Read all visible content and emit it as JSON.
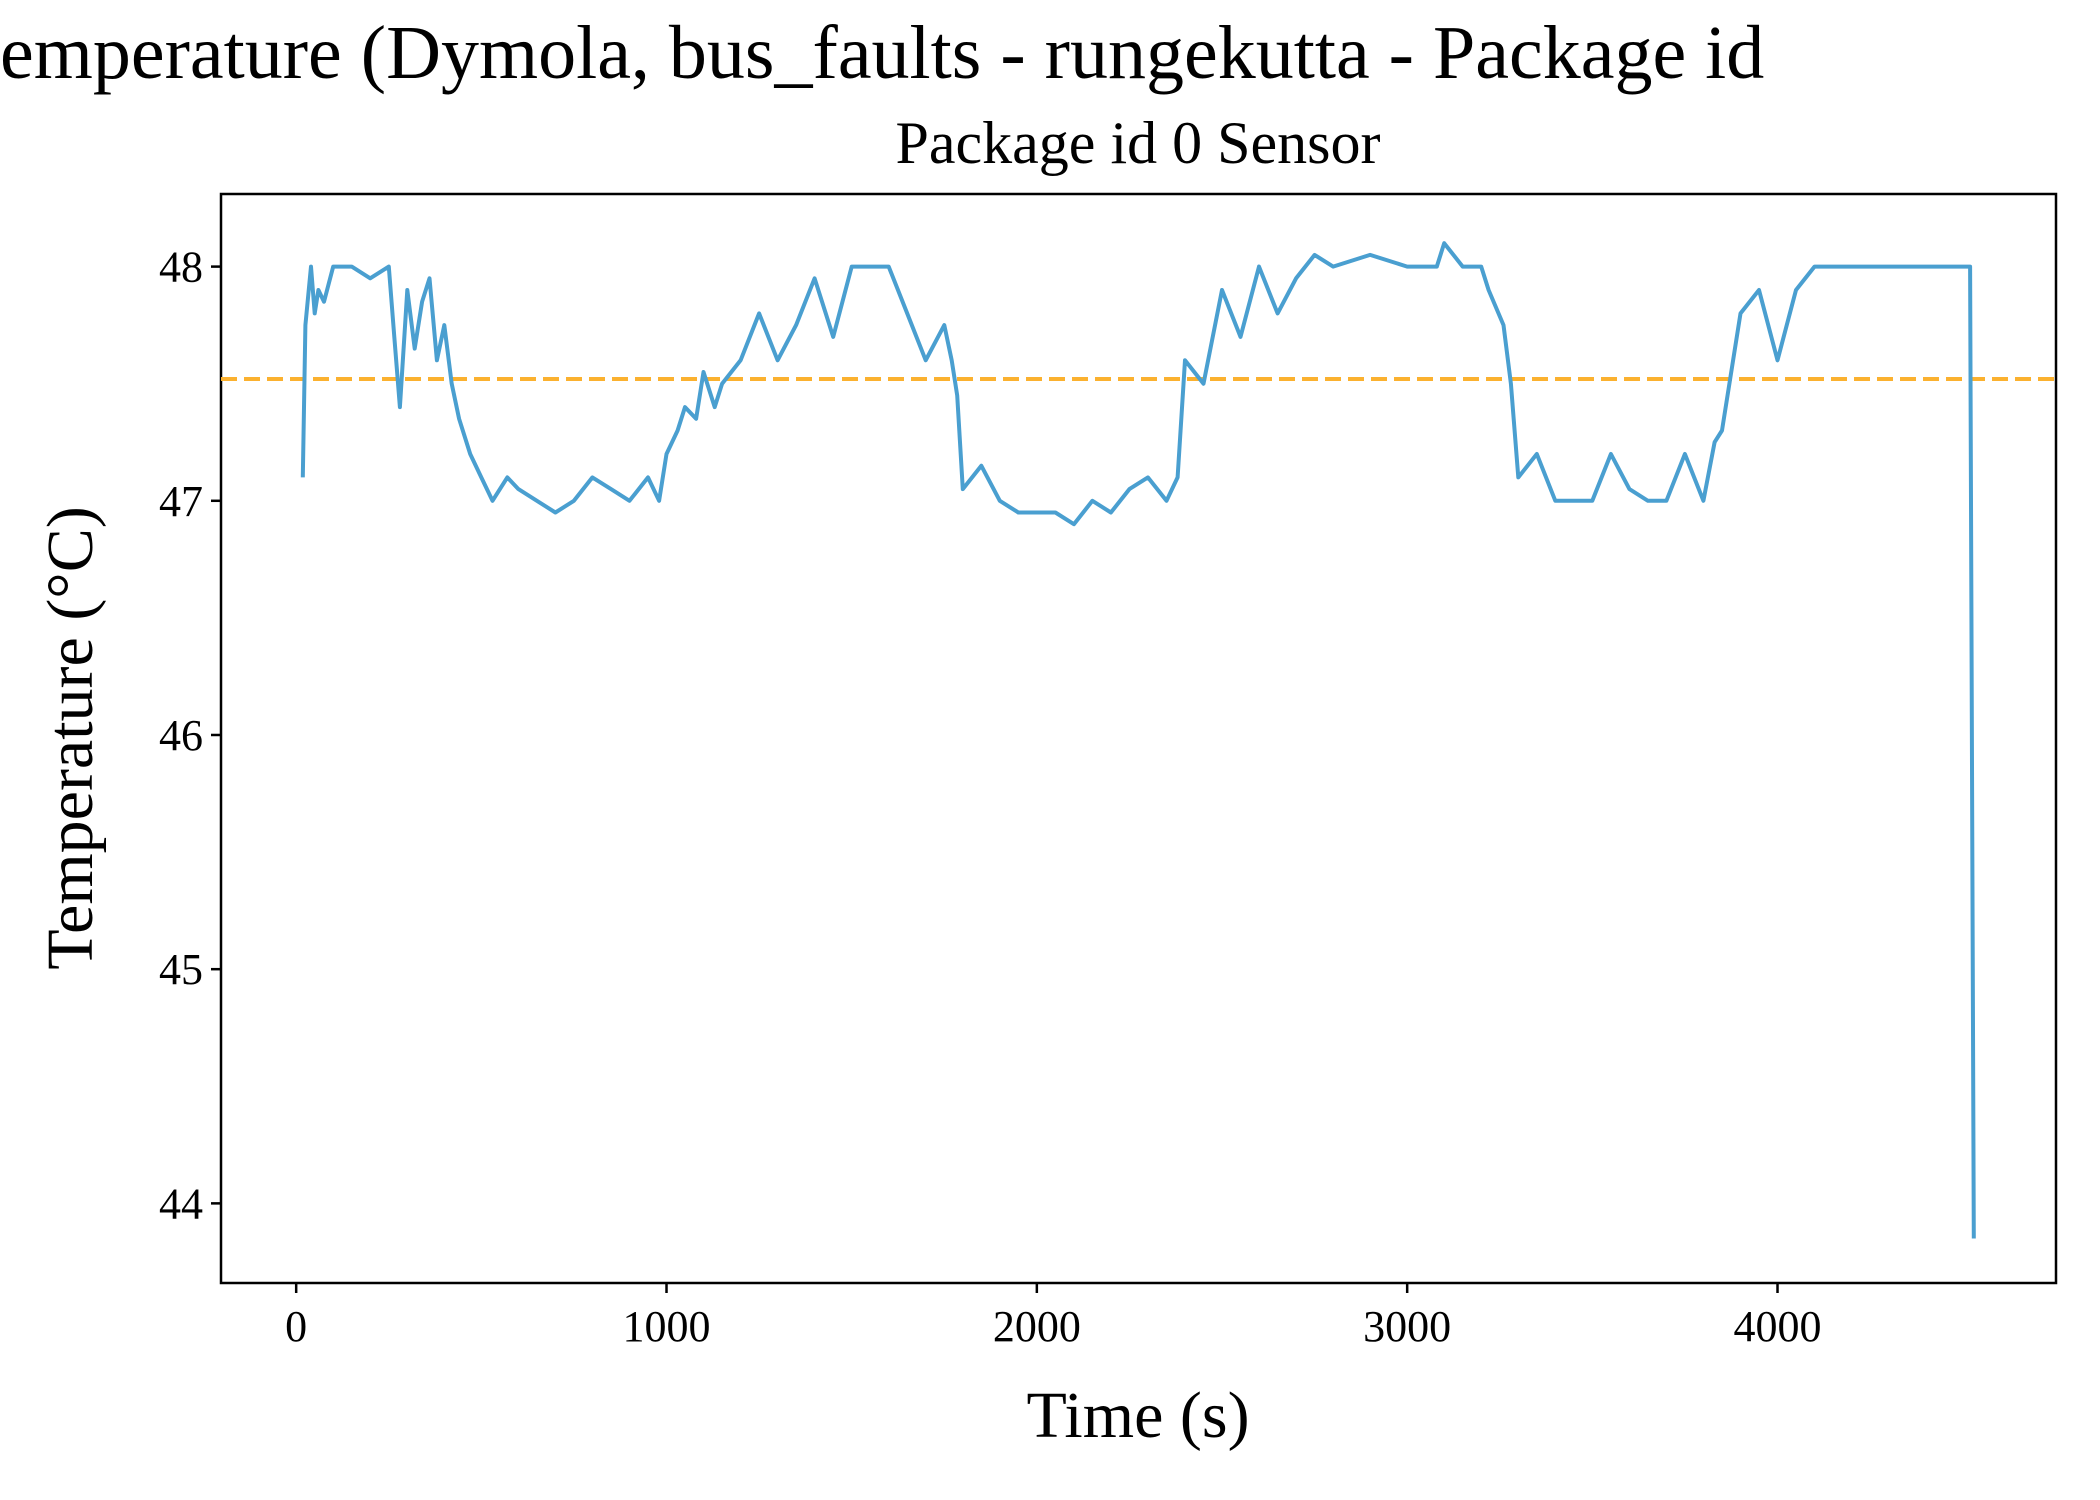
{
  "chart_data": {
    "type": "line",
    "title": "emperature (Dymola, bus_faults - rungekutta - Package id",
    "subtitle": "Package id 0 Sensor",
    "xlabel": "Time (s)",
    "ylabel": "Temperature (°C)",
    "x": [
      18,
      25,
      40,
      50,
      60,
      75,
      100,
      150,
      200,
      250,
      265,
      280,
      300,
      320,
      340,
      360,
      380,
      400,
      420,
      440,
      470,
      500,
      530,
      570,
      600,
      650,
      700,
      750,
      800,
      850,
      900,
      950,
      980,
      1000,
      1030,
      1050,
      1080,
      1100,
      1130,
      1150,
      1200,
      1250,
      1300,
      1350,
      1400,
      1450,
      1500,
      1550,
      1600,
      1650,
      1700,
      1750,
      1770,
      1785,
      1800,
      1850,
      1900,
      1950,
      2000,
      2050,
      2100,
      2150,
      2200,
      2250,
      2300,
      2350,
      2380,
      2400,
      2450,
      2500,
      2550,
      2600,
      2650,
      2700,
      2750,
      2800,
      2900,
      3000,
      3080,
      3100,
      3150,
      3200,
      3220,
      3260,
      3280,
      3300,
      3350,
      3400,
      3450,
      3500,
      3550,
      3600,
      3650,
      3700,
      3750,
      3800,
      3830,
      3850,
      3870,
      3900,
      3950,
      4000,
      4050,
      4100,
      4200,
      4300,
      4400,
      4520,
      4530
    ],
    "series": [
      {
        "name": "Package id 0 Sensor",
        "color": "#4a9fd0",
        "values": [
          47.1,
          47.75,
          48.0,
          47.8,
          47.9,
          47.85,
          48.0,
          48.0,
          47.95,
          48.0,
          47.7,
          47.4,
          47.9,
          47.65,
          47.85,
          47.95,
          47.6,
          47.75,
          47.5,
          47.35,
          47.2,
          47.1,
          47.0,
          47.1,
          47.05,
          47.0,
          46.95,
          47.0,
          47.1,
          47.05,
          47.0,
          47.1,
          47.0,
          47.2,
          47.3,
          47.4,
          47.35,
          47.55,
          47.4,
          47.5,
          47.6,
          47.8,
          47.6,
          47.75,
          47.95,
          47.7,
          48.0,
          48.0,
          48.0,
          47.8,
          47.6,
          47.75,
          47.6,
          47.45,
          47.05,
          47.15,
          47.0,
          46.95,
          46.95,
          46.95,
          46.9,
          47.0,
          46.95,
          47.05,
          47.1,
          47.0,
          47.1,
          47.6,
          47.5,
          47.9,
          47.7,
          48.0,
          47.8,
          47.95,
          48.05,
          48.0,
          48.05,
          48.0,
          48.0,
          48.1,
          48.0,
          48.0,
          47.9,
          47.75,
          47.5,
          47.1,
          47.2,
          47.0,
          47.0,
          47.0,
          47.2,
          47.05,
          47.0,
          47.0,
          47.2,
          47.0,
          47.25,
          47.3,
          47.5,
          47.8,
          47.9,
          47.6,
          47.9,
          48.0,
          48.0,
          48.0,
          48.0,
          48.0,
          43.85
        ]
      }
    ],
    "reference_line": {
      "value": 47.52,
      "color": "#fbb12f"
    },
    "xlim": [
      -203,
      4752
    ],
    "ylim": [
      43.66,
      48.31
    ],
    "xticks": [
      0,
      1000,
      2000,
      3000,
      4000
    ],
    "yticks": [
      44,
      45,
      46,
      47,
      48
    ]
  }
}
